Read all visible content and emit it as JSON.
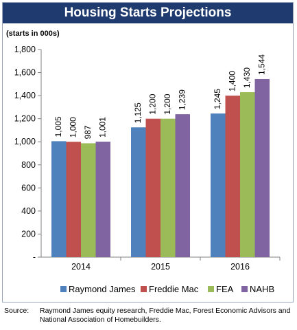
{
  "chart_data": {
    "type": "bar",
    "title": "Housing Starts Projections",
    "ylabel": "(starts in 000s)",
    "categories": [
      "2014",
      "2015",
      "2016"
    ],
    "series": [
      {
        "name": "Raymond James",
        "color": "#4f81bd",
        "values": [
          1005,
          1125,
          1245
        ]
      },
      {
        "name": "Freddie Mac",
        "color": "#c0504d",
        "values": [
          1000,
          1200,
          1400
        ]
      },
      {
        "name": "FEA",
        "color": "#9bbb59",
        "values": [
          987,
          1200,
          1430
        ]
      },
      {
        "name": "NAHB",
        "color": "#8064a2",
        "values": [
          1001,
          1239,
          1544
        ]
      }
    ],
    "value_labels": [
      [
        "1,005",
        "1,125",
        "1,245"
      ],
      [
        "1,000",
        "1,200",
        "1,400"
      ],
      [
        "987",
        "1,200",
        "1,430"
      ],
      [
        "1,001",
        "1,239",
        "1,544"
      ]
    ],
    "ylim": [
      0,
      1800
    ],
    "yticks": [
      0,
      200,
      400,
      600,
      800,
      1000,
      1200,
      1400,
      1600,
      1800
    ],
    "ytick_labels": [
      "-",
      "200",
      "400",
      "600",
      "800",
      "1,000",
      "1,200",
      "1,400",
      "1,600",
      "1,800"
    ],
    "grid": false,
    "legend": "bottom"
  },
  "source": {
    "label": "Source:",
    "text": "Raymond James equity research, Freddie Mac, Forest Economic Advisors and National Association of Homebuilders."
  }
}
